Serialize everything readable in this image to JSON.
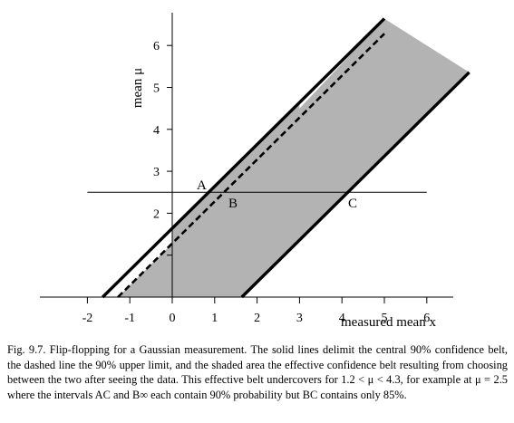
{
  "figure": {
    "xlabel": "measured mean x",
    "ylabel": "mean μ",
    "x_ticks": [
      "-2",
      "-1",
      "0",
      "1",
      "2",
      "3",
      "4",
      "5",
      "6"
    ],
    "y_ticks": [
      "2",
      "3",
      "4",
      "5",
      "6"
    ],
    "points": {
      "a": "A",
      "b": "B",
      "c": "C"
    }
  },
  "caption": {
    "text": "Fig. 9.7. Flip-flopping for a Gaussian measurement. The solid lines delimit the central 90% confidence belt, the dashed line the 90% upper limit, and the shaded area the effective confidence belt resulting from choosing between the two after seeing the data. This effective belt undercovers for 1.2 < μ < 4.3, for example at μ = 2.5 where the intervals AC and B∞ each contain 90% probability but BC contains only 85%."
  },
  "chart_data": {
    "type": "line",
    "xlabel": "measured mean x",
    "ylabel": "mean μ",
    "xlim": [
      -3,
      7
    ],
    "ylim": [
      0,
      6.8
    ],
    "x_ticks": [
      -2,
      -1,
      0,
      1,
      2,
      3,
      4,
      5,
      6
    ],
    "y_ticks": [
      2,
      3,
      4,
      5,
      6
    ],
    "series": [
      {
        "points": [
          [
            -1.64,
            0
          ],
          [
            5.0,
            6.64
          ]
        ]
      },
      {
        "points": [
          [
            1.64,
            0
          ],
          [
            7.0,
            5.36
          ]
        ]
      },
      {
        "points": [
          [
            -1.28,
            0
          ],
          [
            5.0,
            6.28
          ]
        ]
      }
    ],
    "horizontal_line": {
      "y": 2.5,
      "x_range": [
        -2,
        6
      ]
    },
    "shaded_region": [
      [
        -1.28,
        0
      ],
      [
        0,
        1.28
      ],
      [
        0,
        1.6
      ],
      [
        3,
        4.6
      ],
      [
        3,
        4.5
      ],
      [
        5.0,
        6.64
      ],
      [
        7.0,
        5.36
      ],
      [
        1.64,
        0
      ]
    ],
    "annotations": [
      {
        "text": "A",
        "x": 0.86,
        "y": 2.5
      },
      {
        "text": "B",
        "x": 1.28,
        "y": 2.5
      },
      {
        "text": "C",
        "x": 4.14,
        "y": 2.5
      }
    ]
  }
}
